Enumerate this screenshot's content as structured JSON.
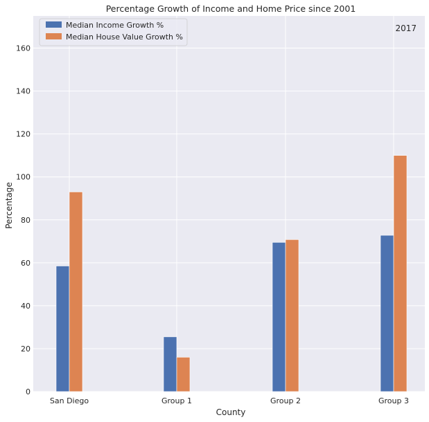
{
  "chart_data": {
    "type": "bar",
    "title": "Percentage Growth of Income and Home Price since 2001",
    "xlabel": "County",
    "ylabel": "Percentage",
    "categories": [
      "San Diego",
      "Group 1",
      "Group 2",
      "Group 3"
    ],
    "series": [
      {
        "name": "Median Income Growth %",
        "values": [
          58.5,
          25.5,
          69.5,
          72.8
        ],
        "color": "#4c72b0"
      },
      {
        "name": "Median House Value Growth %",
        "values": [
          93.0,
          16.0,
          70.8,
          110.0
        ],
        "color": "#dd8452"
      }
    ],
    "ylim": [
      0,
      175
    ],
    "yticks": [
      0,
      20,
      40,
      60,
      80,
      100,
      120,
      140,
      160
    ],
    "annotation": "2017",
    "grid": true,
    "background": "#eaeaf2",
    "legend_position": "top-left"
  }
}
